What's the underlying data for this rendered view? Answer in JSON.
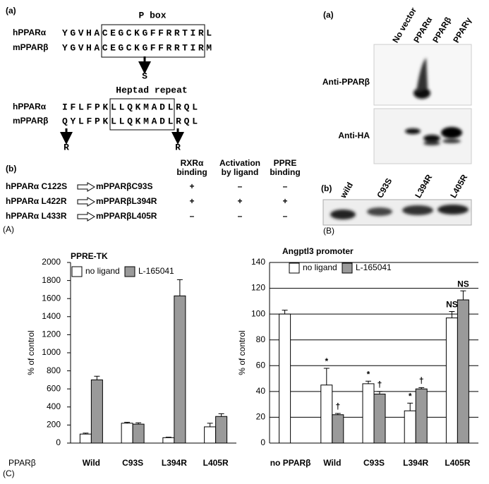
{
  "panel_a": {
    "label": "(a)",
    "pbox_title": "P box",
    "pbox_rows": [
      {
        "name": "hPPARα",
        "sequence": "YGVHACEGCKGFFRRTIRL"
      },
      {
        "name": "mPPARβ",
        "sequence": "YGVHACEGCKGFFRRTIRM"
      }
    ],
    "pbox_mutation": "S",
    "heptad_title": "Heptad repeat",
    "heptad_rows": [
      {
        "name": "hPPARα",
        "sequence": "IFLFPKLLQKMADLRQL"
      },
      {
        "name": "mPPARβ",
        "sequence": "QYLFPKLLQKMADLRQL"
      }
    ],
    "heptad_mutations": [
      "R",
      "R"
    ],
    "table_label": "(b)",
    "table_headers": [
      [
        "RXRα",
        "binding"
      ],
      [
        "Activation",
        "by ligand"
      ],
      [
        "PPRE",
        "binding"
      ]
    ],
    "table_rows": [
      {
        "human": "hPPARα C122S",
        "mouse": "mPPARβC93S",
        "results": [
          "+",
          "–",
          "–"
        ]
      },
      {
        "human": "hPPARα L422R",
        "mouse": "mPPARβL394R",
        "results": [
          "+",
          "+",
          "+"
        ]
      },
      {
        "human": "hPPARα L433R",
        "mouse": "mPPARβL405R",
        "results": [
          "–",
          "–",
          "–"
        ]
      }
    ],
    "panel_label": "(A)"
  },
  "panel_b": {
    "label_a": "(a)",
    "columns": [
      "No vector",
      "PPARα",
      "PPARβ",
      "PPARγ"
    ],
    "blots": [
      "Anti-PPARβ",
      "Anti-HA"
    ],
    "label_b": "(b)",
    "lanes": [
      "wild",
      "C93S",
      "L394R",
      "L405R"
    ],
    "panel_label": "(B)"
  },
  "panel_c_label": "(C)",
  "chart_data": [
    {
      "type": "bar",
      "title": "PPRE-TK",
      "y_label": "% of control",
      "x_label": "PPARβ",
      "categories": [
        "Wild",
        "C93S",
        "L394R",
        "L405R"
      ],
      "series": [
        {
          "name": "no ligand",
          "color": "#ffffff",
          "values": [
            100,
            220,
            60,
            180
          ],
          "errors": [
            10,
            10,
            5,
            40
          ]
        },
        {
          "name": "L-165041",
          "color": "#9a9a9a",
          "values": [
            700,
            210,
            1630,
            295
          ],
          "errors": [
            40,
            15,
            180,
            30
          ]
        }
      ],
      "ylim": [
        0,
        2000
      ],
      "yticks": [
        0,
        200,
        400,
        600,
        800,
        1000,
        1200,
        1400,
        1600,
        1800,
        2000
      ],
      "grid": false
    },
    {
      "type": "bar",
      "title": "Angptl3 promoter",
      "y_label": "% of control",
      "categories": [
        "no PPARβ",
        "Wild",
        "C93S",
        "L394R",
        "L405R"
      ],
      "series": [
        {
          "name": "no ligand",
          "color": "#ffffff",
          "values": [
            100,
            45,
            46,
            25,
            97
          ],
          "errors": [
            3,
            13,
            2,
            6,
            5
          ]
        },
        {
          "name": "L-165041",
          "color": "#9a9a9a",
          "values": [
            null,
            22,
            38,
            42,
            111
          ],
          "errors": [
            null,
            1,
            2,
            1,
            7
          ]
        }
      ],
      "ylim": [
        0,
        140
      ],
      "yticks": [
        0,
        20,
        40,
        60,
        80,
        100,
        120,
        140
      ],
      "grid": true,
      "annotations": [
        {
          "series": 0,
          "index": 1,
          "text": "*"
        },
        {
          "series": 1,
          "index": 1,
          "text": "†"
        },
        {
          "series": 0,
          "index": 2,
          "text": "*"
        },
        {
          "series": 1,
          "index": 2,
          "text": "†"
        },
        {
          "series": 0,
          "index": 3,
          "text": "*"
        },
        {
          "series": 1,
          "index": 3,
          "text": "†"
        },
        {
          "series": 0,
          "index": 4,
          "text": "NS"
        },
        {
          "series": 1,
          "index": 4,
          "text": "NS"
        }
      ]
    }
  ]
}
